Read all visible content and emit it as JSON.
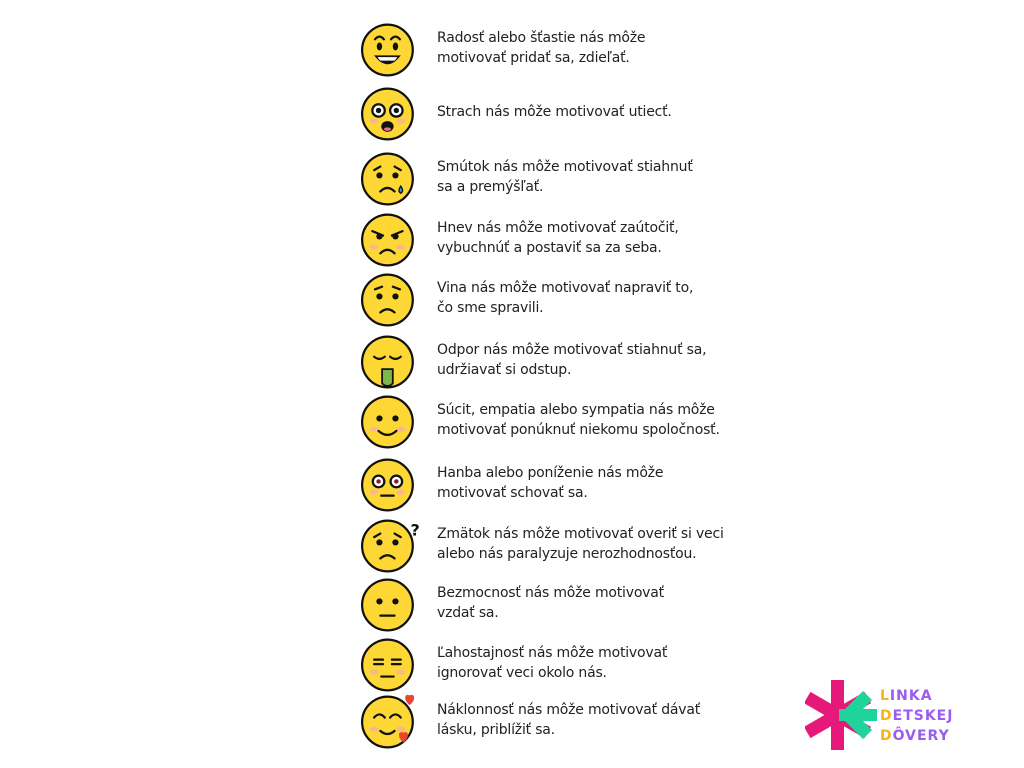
{
  "items": [
    {
      "emotion": "joy",
      "line1": "Radosť alebo šťastie nás môže",
      "line2": "motivovať pridať sa, zdieľať."
    },
    {
      "emotion": "fear",
      "line1": "Strach nás môže motivovať utiecť.",
      "line2": ""
    },
    {
      "emotion": "sadness",
      "line1": "Smútok nás môže motivovať stiahnuť",
      "line2": "sa a premýšľať."
    },
    {
      "emotion": "anger",
      "line1": "Hnev nás môže motivovať zaútočiť,",
      "line2": "vybuchnúť a postaviť sa za seba."
    },
    {
      "emotion": "guilt",
      "line1": "Vina nás môže motivovať napraviť to,",
      "line2": "čo sme spravili."
    },
    {
      "emotion": "disgust",
      "line1": "Odpor nás môže motivovať stiahnuť sa,",
      "line2": "udržiavať si odstup."
    },
    {
      "emotion": "compassion",
      "line1": "Súcit, empatia alebo sympatia nás môže",
      "line2": "motivovať ponúknuť niekomu spoločnosť."
    },
    {
      "emotion": "shame",
      "line1": "Hanba alebo poníženie nás môže",
      "line2": "motivovať schovať sa."
    },
    {
      "emotion": "confusion",
      "line1": "Zmätok nás môže motivovať overiť si veci",
      "line2": "alebo nás paralyzuje nerozhodnosťou."
    },
    {
      "emotion": "helplessness",
      "line1": "Bezmocnosť nás môže motivovať",
      "line2": "vzdať sa."
    },
    {
      "emotion": "indifference",
      "line1": "Ľahostajnosť nás môže motivovať",
      "line2": "ignorovať veci okolo nás."
    },
    {
      "emotion": "affection",
      "line1": "Náklonnosť nás môže motivovať dávať",
      "line2": "lásku, priblížiť sa."
    }
  ],
  "logo": {
    "line1_first": "L",
    "line1_rest": "INKA",
    "line2_first": "D",
    "line2_rest": "ETSKEJ",
    "line3_first": "D",
    "line3_rest": "ÔVERY"
  },
  "colors": {
    "face": "#fdd835",
    "outline": "#111111",
    "blush": "#f8b98a",
    "logo_pink": "#e6197a",
    "logo_green": "#1fd39a",
    "logo_purple": "#9b5cf0",
    "logo_yellow": "#f3b51b"
  }
}
